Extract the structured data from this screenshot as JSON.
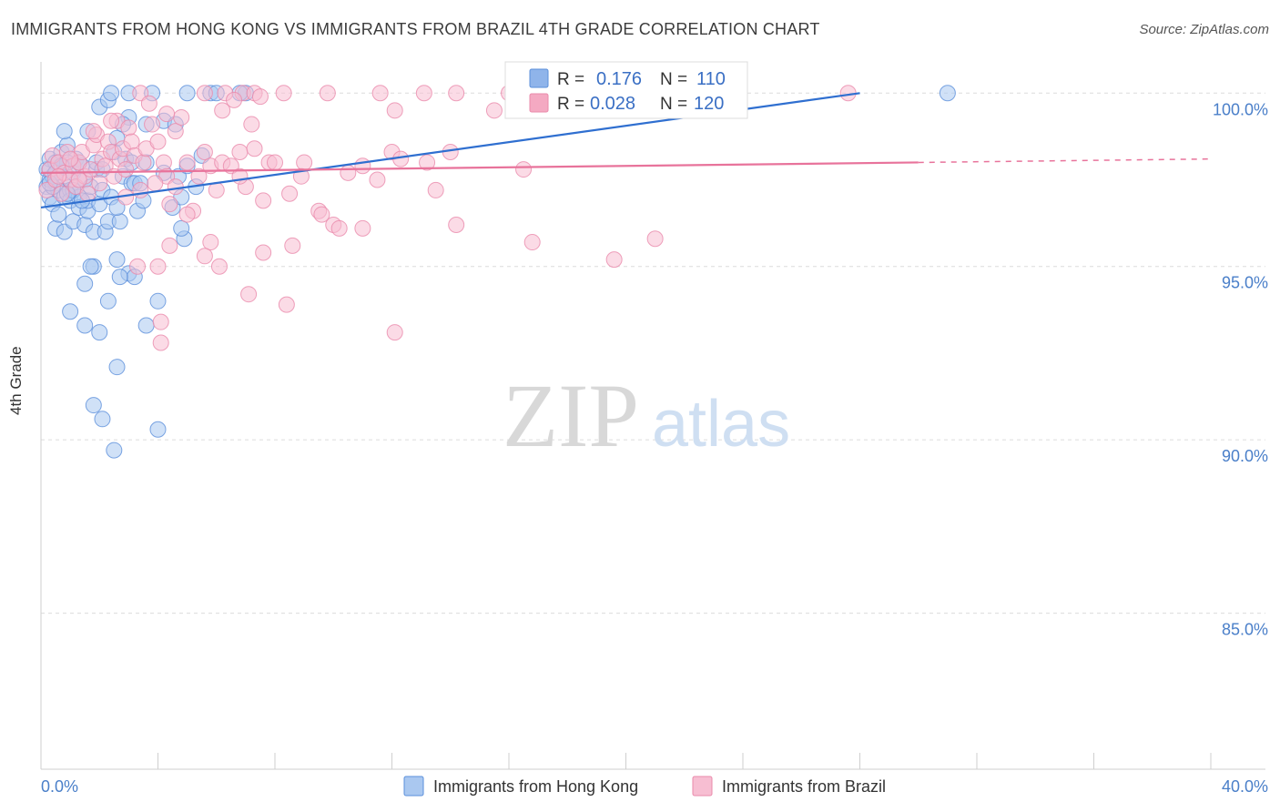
{
  "header": {
    "title": "IMMIGRANTS FROM HONG KONG VS IMMIGRANTS FROM BRAZIL 4TH GRADE CORRELATION CHART",
    "source": "Source: ZipAtlas.com"
  },
  "watermark": {
    "zip": "ZIP",
    "atlas": "atlas"
  },
  "stats": {
    "r_label": "R =",
    "n_label": "N =",
    "rows": [
      {
        "r": "0.176",
        "n": "110",
        "color": "#8fb4ea"
      },
      {
        "r": "0.028",
        "n": "120",
        "color": "#f4a9c2"
      }
    ]
  },
  "chart_data": {
    "type": "scatter",
    "title": "IMMIGRANTS FROM HONG KONG VS IMMIGRANTS FROM BRAZIL 4TH GRADE CORRELATION CHART",
    "xlabel": "",
    "ylabel": "4th Grade",
    "xlim": [
      0,
      40
    ],
    "ylim": [
      80.5,
      100.9
    ],
    "x_tick_labels": [
      "0.0%",
      "40.0%"
    ],
    "y_ticks": [
      85,
      90,
      95,
      100
    ],
    "y_tick_labels": [
      "85.0%",
      "90.0%",
      "95.0%",
      "100.0%"
    ],
    "grid": true,
    "legend_position": "bottom",
    "series": [
      {
        "name": "Immigrants from Hong Kong",
        "color": "#5b8fdb",
        "fill": "#aac8f0",
        "trend": {
          "x": [
            0,
            28
          ],
          "y": [
            96.7,
            100.0
          ],
          "color": "#2f6fd0"
        },
        "points": [
          [
            0.2,
            97.3
          ],
          [
            0.2,
            97.8
          ],
          [
            0.3,
            98.1
          ],
          [
            0.3,
            97.5
          ],
          [
            0.3,
            97.0
          ],
          [
            0.4,
            96.8
          ],
          [
            0.4,
            97.6
          ],
          [
            0.5,
            96.1
          ],
          [
            0.5,
            97.4
          ],
          [
            0.5,
            98.0
          ],
          [
            0.6,
            96.5
          ],
          [
            0.6,
            97.2
          ],
          [
            0.7,
            98.3
          ],
          [
            0.7,
            97.9
          ],
          [
            0.8,
            96.0
          ],
          [
            0.8,
            97.0
          ],
          [
            0.9,
            97.6
          ],
          [
            0.9,
            98.5
          ],
          [
            0.8,
            98.9
          ],
          [
            1.0,
            97.2
          ],
          [
            1.0,
            96.9
          ],
          [
            1.1,
            97.7
          ],
          [
            1.1,
            96.3
          ],
          [
            1.2,
            98.1
          ],
          [
            1.2,
            97.3
          ],
          [
            1.3,
            97.0
          ],
          [
            1.3,
            96.7
          ],
          [
            1.4,
            97.9
          ],
          [
            1.5,
            97.5
          ],
          [
            1.5,
            96.2
          ],
          [
            1.6,
            96.6
          ],
          [
            1.6,
            96.9
          ],
          [
            1.7,
            97.3
          ],
          [
            1.8,
            96.0
          ],
          [
            1.9,
            97.8
          ],
          [
            2.0,
            96.8
          ],
          [
            2.1,
            97.2
          ],
          [
            2.2,
            96.0
          ],
          [
            2.3,
            96.3
          ],
          [
            2.4,
            97.0
          ],
          [
            2.5,
            98.3
          ],
          [
            2.6,
            98.7
          ],
          [
            2.7,
            96.3
          ],
          [
            2.8,
            97.6
          ],
          [
            2.9,
            98.1
          ],
          [
            3.0,
            99.3
          ],
          [
            3.1,
            97.4
          ],
          [
            3.2,
            97.4
          ],
          [
            3.3,
            96.6
          ],
          [
            3.4,
            97.4
          ],
          [
            2.0,
            99.6
          ],
          [
            2.3,
            99.8
          ],
          [
            2.4,
            100.0
          ],
          [
            2.8,
            99.1
          ],
          [
            3.0,
            100.0
          ],
          [
            3.6,
            99.1
          ],
          [
            3.8,
            100.0
          ],
          [
            4.2,
            99.2
          ],
          [
            4.5,
            96.7
          ],
          [
            4.6,
            99.1
          ],
          [
            4.7,
            97.6
          ],
          [
            4.8,
            97.0
          ],
          [
            4.9,
            95.8
          ],
          [
            5.0,
            97.9
          ],
          [
            5.3,
            97.3
          ],
          [
            5.0,
            100.0
          ],
          [
            5.8,
            100.0
          ],
          [
            6.0,
            100.0
          ],
          [
            7.0,
            100.0
          ],
          [
            5.5,
            98.2
          ],
          [
            1.8,
            95.0
          ],
          [
            1.7,
            95.0
          ],
          [
            2.6,
            95.2
          ],
          [
            3.0,
            94.8
          ],
          [
            3.2,
            94.7
          ],
          [
            2.7,
            94.7
          ],
          [
            1.5,
            94.5
          ],
          [
            2.3,
            94.0
          ],
          [
            4.0,
            94.0
          ],
          [
            1.0,
            93.7
          ],
          [
            1.5,
            93.3
          ],
          [
            3.6,
            93.3
          ],
          [
            2.0,
            93.1
          ],
          [
            2.6,
            92.1
          ],
          [
            1.8,
            91.0
          ],
          [
            2.1,
            90.6
          ],
          [
            4.0,
            90.3
          ],
          [
            2.5,
            89.7
          ],
          [
            0.3,
            97.8
          ],
          [
            0.5,
            97.7
          ],
          [
            0.9,
            98.0
          ],
          [
            1.3,
            98.0
          ],
          [
            1.9,
            98.0
          ],
          [
            3.1,
            98.0
          ],
          [
            3.5,
            96.9
          ],
          [
            4.8,
            96.1
          ],
          [
            1.1,
            97.2
          ],
          [
            0.6,
            98.0
          ],
          [
            0.4,
            97.3
          ],
          [
            0.7,
            97.9
          ],
          [
            0.3,
            97.4
          ],
          [
            0.9,
            97.1
          ],
          [
            1.4,
            96.9
          ],
          [
            2.6,
            96.7
          ],
          [
            3.6,
            98.0
          ],
          [
            4.2,
            97.7
          ],
          [
            6.8,
            100.0
          ],
          [
            31.0,
            100.0
          ],
          [
            1.6,
            98.9
          ],
          [
            2.1,
            97.8
          ]
        ]
      },
      {
        "name": "Immigrants from Brazil",
        "color": "#ea8aab",
        "fill": "#f7bed2",
        "trend": {
          "x": [
            0,
            30
          ],
          "y": [
            97.7,
            98.0
          ],
          "color": "#e8739b",
          "dash_to": [
            40,
            98.1
          ]
        },
        "points": [
          [
            0.2,
            97.2
          ],
          [
            0.3,
            97.8
          ],
          [
            0.4,
            98.2
          ],
          [
            0.5,
            97.5
          ],
          [
            0.6,
            98.0
          ],
          [
            0.7,
            97.1
          ],
          [
            0.8,
            97.7
          ],
          [
            0.9,
            98.3
          ],
          [
            1.0,
            97.5
          ],
          [
            1.1,
            97.9
          ],
          [
            1.2,
            97.3
          ],
          [
            1.3,
            98.0
          ],
          [
            1.4,
            98.3
          ],
          [
            1.5,
            97.6
          ],
          [
            1.6,
            97.1
          ],
          [
            1.7,
            97.8
          ],
          [
            1.8,
            98.5
          ],
          [
            1.9,
            98.8
          ],
          [
            2.0,
            97.4
          ],
          [
            2.1,
            98.1
          ],
          [
            2.2,
            97.9
          ],
          [
            2.3,
            98.6
          ],
          [
            2.4,
            98.3
          ],
          [
            2.5,
            97.6
          ],
          [
            2.6,
            99.2
          ],
          [
            2.7,
            98.1
          ],
          [
            2.8,
            98.4
          ],
          [
            2.9,
            97.0
          ],
          [
            3.0,
            99.0
          ],
          [
            3.1,
            98.6
          ],
          [
            3.2,
            98.2
          ],
          [
            3.4,
            97.2
          ],
          [
            3.5,
            98.0
          ],
          [
            3.6,
            98.4
          ],
          [
            3.8,
            99.1
          ],
          [
            4.0,
            98.6
          ],
          [
            4.2,
            98.0
          ],
          [
            4.3,
            97.6
          ],
          [
            4.4,
            96.8
          ],
          [
            4.6,
            98.9
          ],
          [
            4.8,
            99.3
          ],
          [
            5.0,
            98.0
          ],
          [
            5.2,
            96.6
          ],
          [
            5.4,
            97.6
          ],
          [
            5.6,
            98.3
          ],
          [
            5.8,
            97.9
          ],
          [
            6.0,
            97.2
          ],
          [
            6.2,
            98.0
          ],
          [
            6.5,
            97.9
          ],
          [
            6.8,
            98.3
          ],
          [
            7.0,
            97.3
          ],
          [
            7.3,
            98.4
          ],
          [
            7.6,
            96.9
          ],
          [
            7.8,
            98.0
          ],
          [
            8.0,
            98.0
          ],
          [
            8.5,
            97.1
          ],
          [
            9.0,
            98.0
          ],
          [
            9.5,
            96.6
          ],
          [
            10.0,
            96.2
          ],
          [
            10.5,
            97.7
          ],
          [
            11.0,
            97.9
          ],
          [
            11.5,
            97.5
          ],
          [
            12.0,
            98.3
          ],
          [
            12.3,
            98.1
          ],
          [
            13.2,
            98.0
          ],
          [
            14.0,
            98.3
          ],
          [
            16.5,
            97.8
          ],
          [
            3.3,
            95.0
          ],
          [
            4.0,
            95.0
          ],
          [
            4.4,
            95.6
          ],
          [
            5.8,
            95.7
          ],
          [
            5.6,
            95.3
          ],
          [
            6.1,
            95.0
          ],
          [
            7.6,
            95.4
          ],
          [
            8.6,
            95.6
          ],
          [
            11.0,
            96.1
          ],
          [
            13.5,
            97.2
          ],
          [
            14.2,
            96.2
          ],
          [
            16.8,
            95.7
          ],
          [
            19.6,
            95.2
          ],
          [
            21.0,
            95.8
          ],
          [
            7.1,
            94.2
          ],
          [
            8.4,
            93.9
          ],
          [
            4.1,
            93.4
          ],
          [
            4.1,
            92.8
          ],
          [
            12.1,
            93.1
          ],
          [
            6.2,
            99.5
          ],
          [
            7.2,
            99.1
          ],
          [
            12.1,
            99.5
          ],
          [
            9.8,
            100.0
          ],
          [
            11.6,
            100.0
          ],
          [
            13.1,
            100.0
          ],
          [
            14.2,
            100.0
          ],
          [
            15.5,
            99.5
          ],
          [
            16.0,
            100.0
          ],
          [
            17.0,
            100.0
          ],
          [
            27.6,
            100.0
          ],
          [
            6.9,
            100.0
          ],
          [
            7.3,
            100.0
          ],
          [
            8.3,
            100.0
          ],
          [
            5.6,
            100.0
          ],
          [
            6.3,
            100.0
          ],
          [
            3.4,
            100.0
          ],
          [
            3.7,
            99.7
          ],
          [
            4.3,
            99.4
          ],
          [
            6.6,
            99.8
          ],
          [
            2.4,
            99.2
          ],
          [
            1.8,
            98.9
          ],
          [
            7.5,
            99.9
          ],
          [
            9.6,
            96.5
          ],
          [
            10.2,
            96.1
          ],
          [
            4.6,
            97.3
          ],
          [
            3.9,
            97.4
          ],
          [
            1.3,
            97.5
          ],
          [
            0.6,
            97.6
          ],
          [
            5.0,
            96.5
          ],
          [
            2.9,
            97.8
          ],
          [
            1.0,
            98.1
          ],
          [
            6.8,
            97.6
          ],
          [
            8.9,
            97.6
          ]
        ]
      }
    ]
  },
  "legend": {
    "items": [
      {
        "label": "Immigrants from Hong Kong",
        "color": "#aac8f0",
        "border": "#5b8fdb"
      },
      {
        "label": "Immigrants from Brazil",
        "color": "#f7bed2",
        "border": "#ea8aab"
      }
    ]
  }
}
